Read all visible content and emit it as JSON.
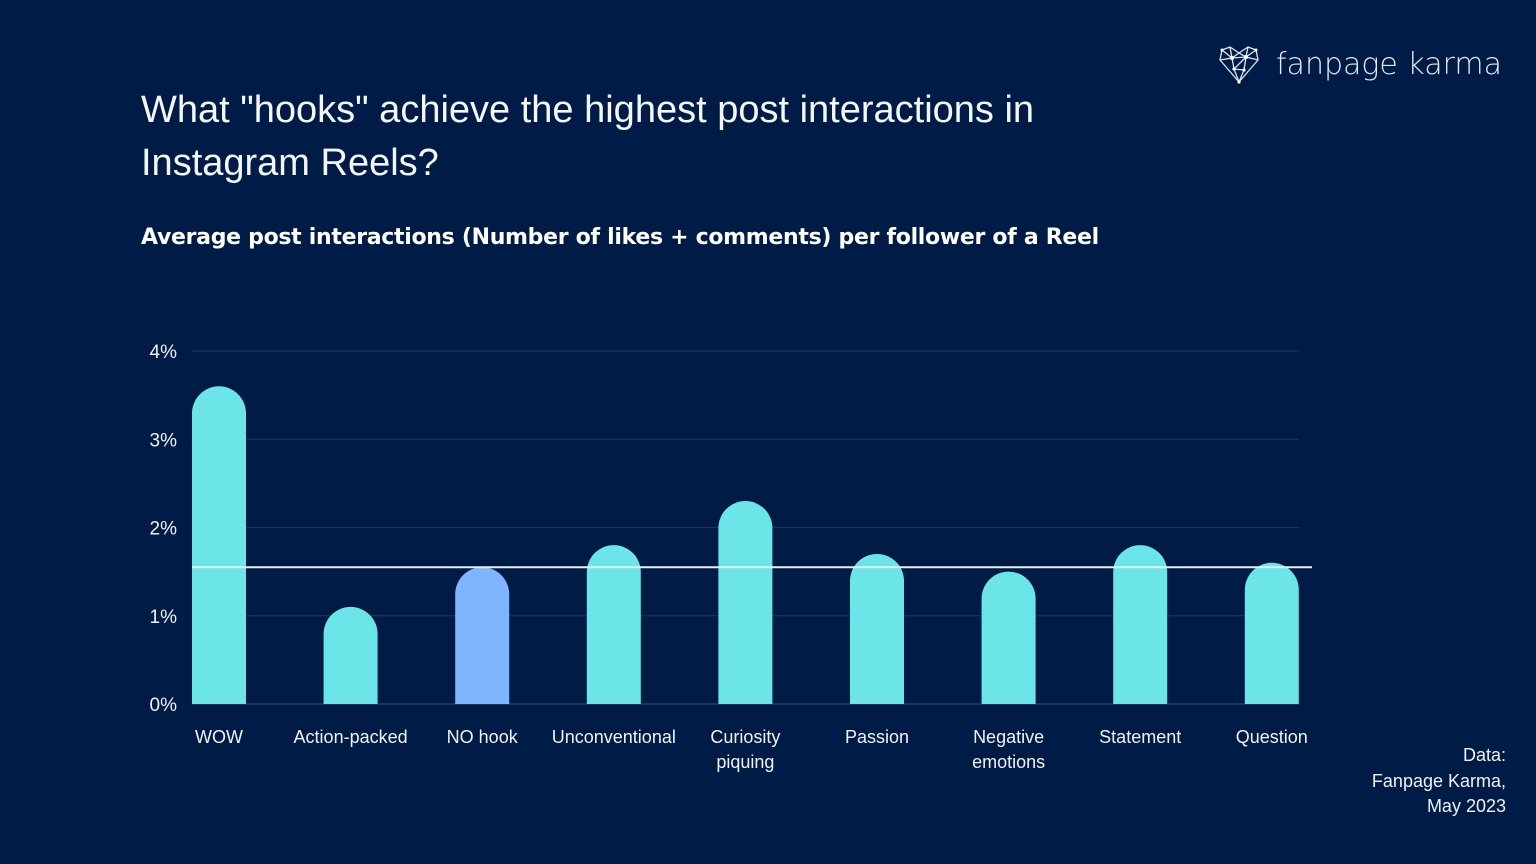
{
  "logo": {
    "text": "fanpage karma"
  },
  "title": "What \"hooks\" achieve the highest post interactions in Instagram Reels?",
  "subtitle": "Average post interactions (Number of likes + comments) per follower of a Reel",
  "source": {
    "line1": "Data:",
    "line2": "Fanpage Karma,",
    "line3": "May 2023"
  },
  "colors": {
    "background": "#001b45",
    "bar": "#6ce5e8",
    "highlight": "#7fb5ff",
    "reference_line": "#e8eef5",
    "grid": "#1c3460"
  },
  "chart_data": {
    "type": "bar",
    "title": "Average post interactions (Number of likes + comments) per follower of a Reel",
    "categories": [
      "WOW",
      "Action-packed",
      "NO hook",
      "Unconventional",
      "Curiosity piquing",
      "Passion",
      "Negative emotions",
      "Statement",
      "Question"
    ],
    "category_lines": [
      [
        "WOW"
      ],
      [
        "Action-packed"
      ],
      [
        "NO hook"
      ],
      [
        "Unconventional"
      ],
      [
        "Curiosity",
        "piquing"
      ],
      [
        "Passion"
      ],
      [
        "Negative",
        "emotions"
      ],
      [
        "Statement"
      ],
      [
        "Question"
      ]
    ],
    "values": [
      3.6,
      1.1,
      1.55,
      1.8,
      2.3,
      1.7,
      1.5,
      1.8,
      1.6
    ],
    "highlighted_category": "NO hook",
    "reference_value": 1.55,
    "ylim": [
      0,
      4
    ],
    "yticks": [
      0,
      1,
      2,
      3,
      4
    ],
    "ytick_labels": [
      "0%",
      "1%",
      "2%",
      "3%",
      "4%"
    ],
    "unit": "%",
    "grid": true,
    "legend": "none"
  }
}
